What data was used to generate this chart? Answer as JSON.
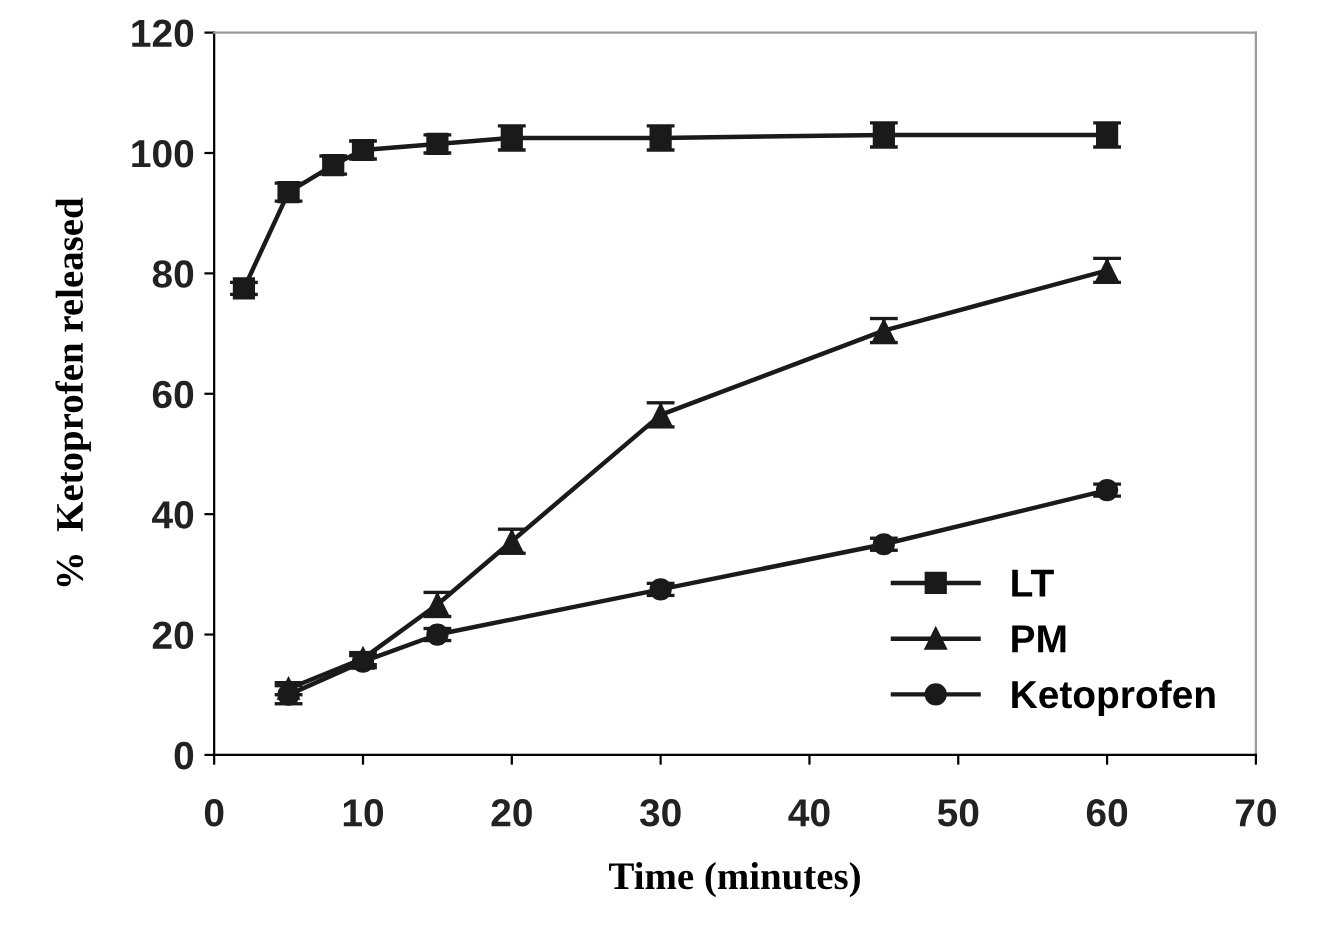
{
  "chart_data": {
    "type": "line",
    "xlabel": "Time (minutes)",
    "ylabel": "%  Ketoprofen released",
    "xlim": [
      0,
      70
    ],
    "xticks": [
      0,
      10,
      20,
      30,
      40,
      50,
      60,
      70
    ],
    "ylim": [
      0,
      120
    ],
    "yticks": [
      0,
      20,
      40,
      60,
      80,
      100,
      120
    ],
    "grid": false,
    "legend": "bottom right",
    "line_style": "solid",
    "series": [
      {
        "name": "LT",
        "color": "#1a1a1a",
        "marker": "square",
        "x": [
          2,
          5,
          8,
          10,
          15,
          20,
          30,
          45,
          60
        ],
        "values": [
          77.5,
          93.5,
          98,
          100.5,
          101.5,
          102.5,
          102.5,
          103,
          103
        ],
        "errors": [
          1,
          1.5,
          1.5,
          1.5,
          1.5,
          2,
          2,
          2,
          2
        ]
      },
      {
        "name": "PM",
        "color": "#1a1a1a",
        "marker": "triangle",
        "x": [
          5,
          10,
          15,
          20,
          30,
          45,
          60
        ],
        "values": [
          11,
          16,
          25,
          35.5,
          56.5,
          70.5,
          80.5
        ],
        "errors": [
          1,
          1,
          2,
          2,
          2,
          2,
          2
        ]
      },
      {
        "name": "Ketoprofen",
        "color": "#1a1a1a",
        "marker": "circle",
        "x": [
          5,
          10,
          15,
          30,
          45,
          60
        ],
        "values": [
          10,
          15.5,
          20,
          27.5,
          35,
          44
        ],
        "errors": [
          1.5,
          1,
          1,
          1,
          1,
          1
        ]
      }
    ]
  }
}
